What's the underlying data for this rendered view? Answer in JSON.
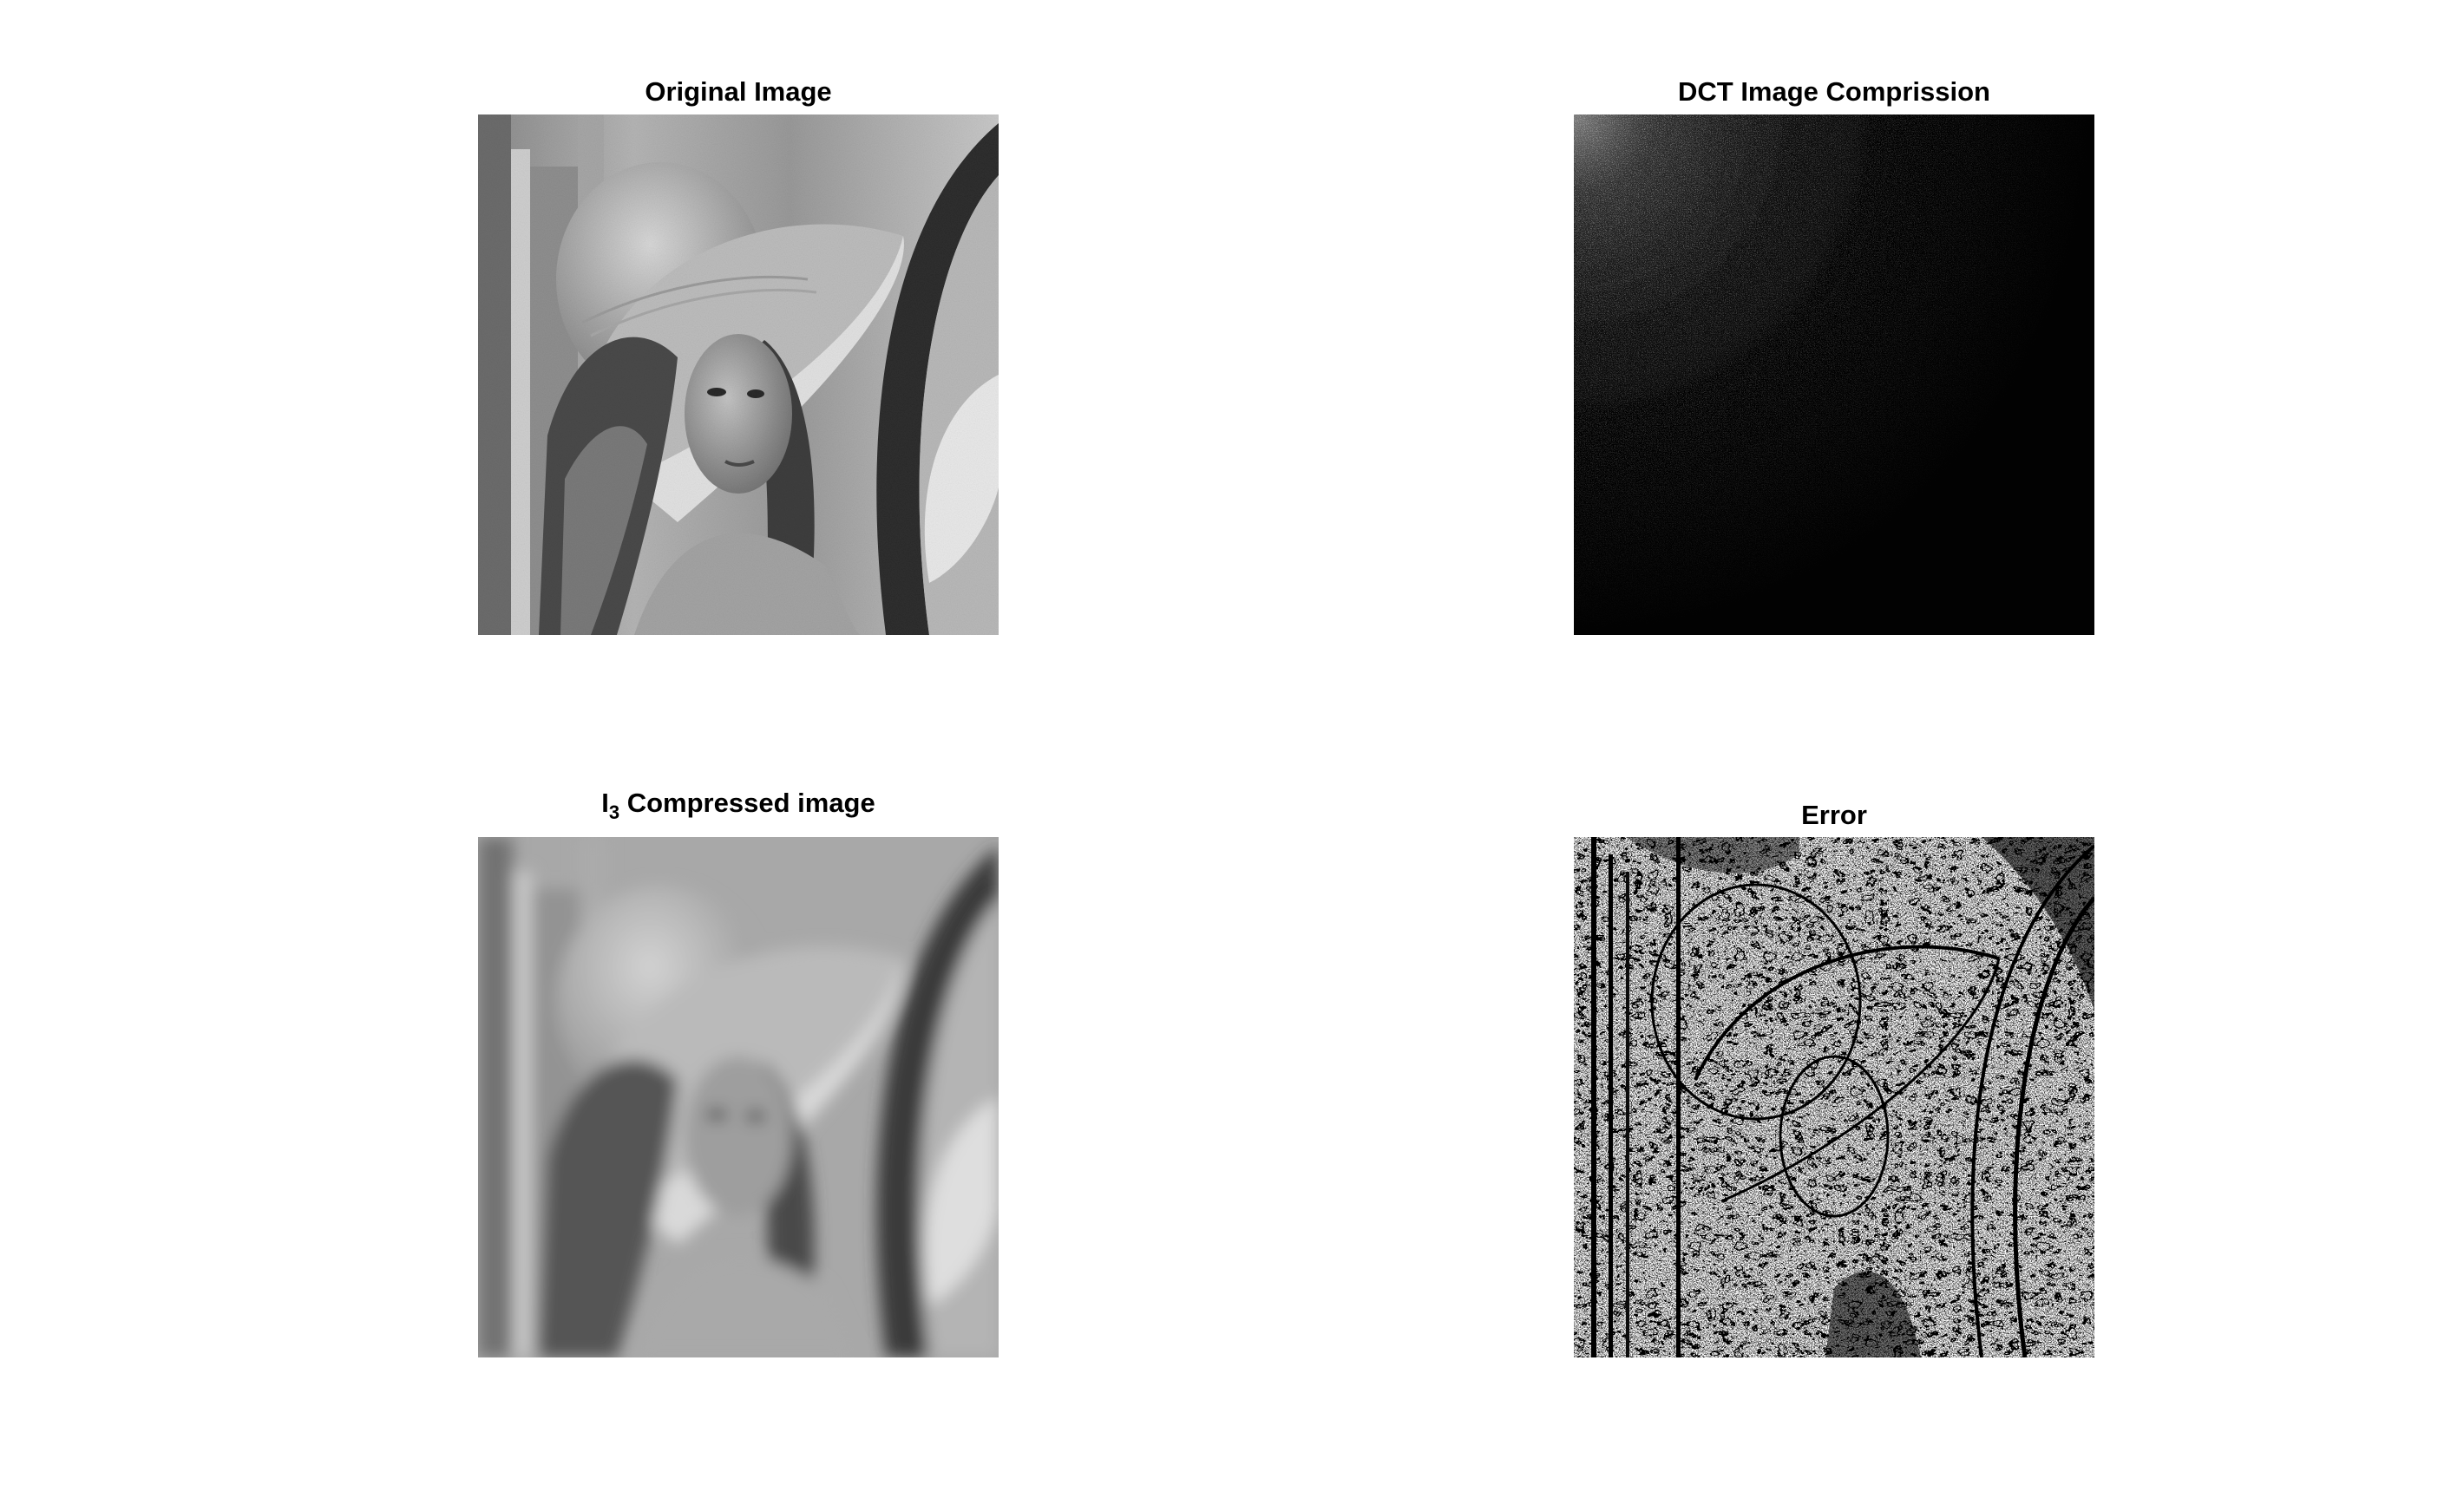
{
  "figure": {
    "panels": [
      {
        "id": "original",
        "title": "Original Image",
        "picture": "grayscale portrait of a woman wearing a wide-brimmed hat"
      },
      {
        "id": "dct",
        "title": "DCT Image Comprission",
        "picture": "nearly black DCT coefficient map with faint bright texture at the top-left corner"
      },
      {
        "id": "compressed",
        "title_main": "I",
        "title_sub": "3",
        "title_rest": " Compressed image",
        "picture": "blurred, blocky grayscale reconstruction of the portrait"
      },
      {
        "id": "error",
        "title": "Error",
        "picture": "black and white speckled edge map of the portrait"
      }
    ]
  }
}
